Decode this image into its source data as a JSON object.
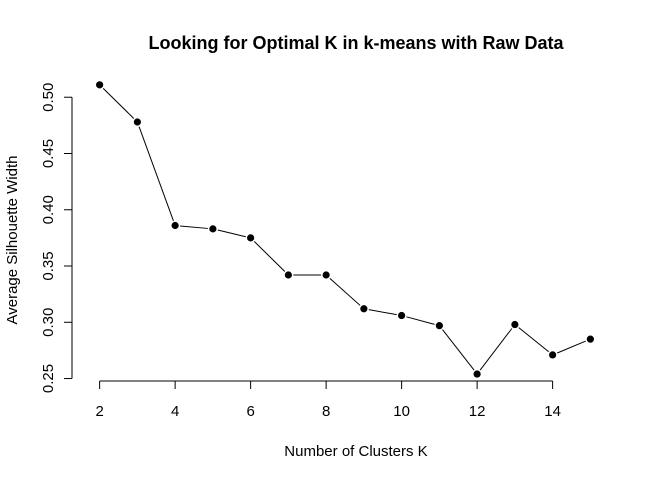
{
  "chart_data": {
    "type": "line",
    "title": "Looking for Optimal K in k-means with Raw Data",
    "xlabel": "Number of Clusters K",
    "ylabel": "Average Silhouette Width",
    "x": [
      2,
      3,
      4,
      5,
      6,
      7,
      8,
      9,
      10,
      11,
      12,
      13,
      14,
      15
    ],
    "values": [
      0.511,
      0.478,
      0.386,
      0.383,
      0.375,
      0.342,
      0.342,
      0.312,
      0.306,
      0.297,
      0.254,
      0.298,
      0.271,
      0.285
    ],
    "xlim": [
      1.48,
      15.52
    ],
    "ylim": [
      0.2487,
      0.5162
    ],
    "xticks": [
      2,
      4,
      6,
      8,
      10,
      12,
      14
    ],
    "yticks": [
      0.25,
      0.3,
      0.35,
      0.4,
      0.45,
      0.5
    ],
    "ytick_labels": [
      "0.25",
      "0.30",
      "0.35",
      "0.40",
      "0.45",
      "0.50"
    ],
    "grid": false,
    "legend": "none",
    "marker": "filled-circle",
    "line_color": "#000000",
    "marker_color": "#000000"
  }
}
